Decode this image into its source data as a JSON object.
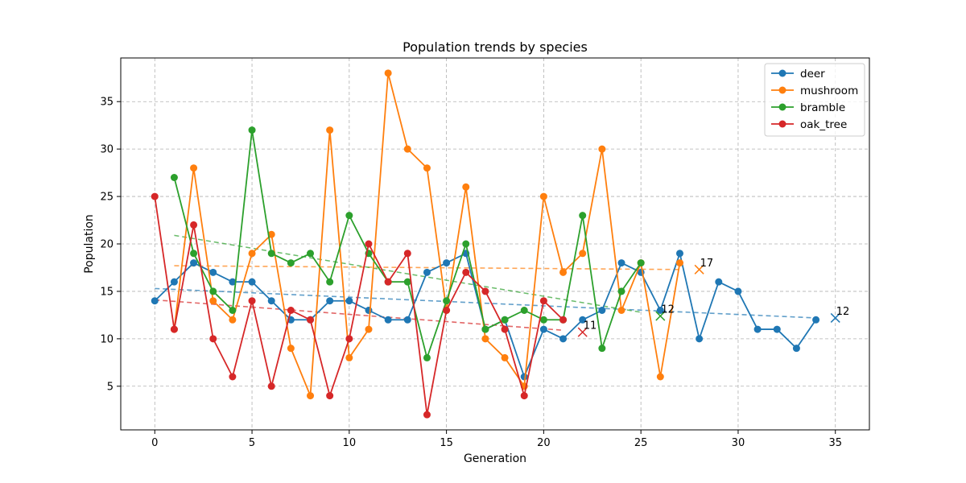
{
  "chart_data": {
    "type": "line",
    "title": "Population trends by species",
    "xlabel": "Generation",
    "ylabel": "Population",
    "xlim": [
      -1.75,
      36.75
    ],
    "ylim": [
      0.4,
      39.6
    ],
    "xticks": [
      0,
      5,
      10,
      15,
      20,
      25,
      30,
      35
    ],
    "yticks": [
      5,
      10,
      15,
      20,
      25,
      30,
      35
    ],
    "grid": true,
    "legend_position": "top-right",
    "series": [
      {
        "name": "deer",
        "color": "#1f77b4",
        "x": [
          0,
          1,
          2,
          3,
          4,
          5,
          6,
          7,
          8,
          9,
          10,
          11,
          12,
          13,
          14,
          15,
          16,
          17,
          18,
          19,
          20,
          21,
          22,
          23,
          24,
          25,
          26,
          27,
          28,
          29,
          30,
          31,
          32,
          33,
          34
        ],
        "y": [
          14,
          16,
          18,
          17,
          16,
          16,
          14,
          12,
          12,
          14,
          14,
          13,
          12,
          12,
          17,
          18,
          19,
          11,
          12,
          6,
          11,
          10,
          12,
          13,
          18,
          17,
          13,
          19,
          10,
          16,
          15,
          11,
          11,
          9,
          12
        ],
        "trend": {
          "x0": 0,
          "y0": 15.3,
          "x1": 34,
          "y1": 12.2
        },
        "forecast": {
          "x": 35,
          "y": 12.2,
          "label": "12"
        }
      },
      {
        "name": "mushroom",
        "color": "#ff7f0e",
        "x": [
          1,
          2,
          3,
          4,
          5,
          6,
          7,
          8,
          9,
          10,
          11,
          12,
          13,
          14,
          15,
          16,
          17,
          18,
          19,
          20,
          21,
          22,
          23,
          24,
          25,
          26,
          27
        ],
        "y": [
          11,
          28,
          14,
          12,
          19,
          21,
          9,
          4,
          32,
          8,
          11,
          38,
          30,
          28,
          13,
          26,
          10,
          8,
          5,
          25,
          17,
          19,
          30,
          13,
          18,
          6,
          18
        ],
        "trend": {
          "x0": 1,
          "y0": 17.7,
          "x1": 27,
          "y1": 17.3
        },
        "forecast": {
          "x": 28,
          "y": 17.3,
          "label": "17"
        }
      },
      {
        "name": "bramble",
        "color": "#2ca02c",
        "x": [
          1,
          2,
          3,
          4,
          5,
          6,
          7,
          8,
          9,
          10,
          11,
          12,
          13,
          14,
          15,
          16,
          17,
          18,
          19,
          20,
          21,
          22,
          23,
          24,
          25
        ],
        "y": [
          27,
          19,
          15,
          13,
          32,
          19,
          18,
          19,
          16,
          23,
          19,
          16,
          16,
          8,
          14,
          20,
          11,
          12,
          13,
          12,
          12,
          23,
          9,
          15,
          18
        ],
        "trend": {
          "x0": 1,
          "y0": 20.9,
          "x1": 25,
          "y1": 12.8
        },
        "forecast": {
          "x": 26,
          "y": 12.4,
          "label": "12"
        }
      },
      {
        "name": "oak_tree",
        "color": "#d62728",
        "x": [
          0,
          1,
          2,
          3,
          4,
          5,
          6,
          7,
          8,
          9,
          10,
          11,
          12,
          13,
          14,
          15,
          16,
          17,
          18,
          19,
          20,
          21
        ],
        "y": [
          25,
          11,
          22,
          10,
          6,
          14,
          5,
          13,
          12,
          4,
          10,
          20,
          16,
          19,
          2,
          13,
          17,
          15,
          11,
          4,
          14,
          12
        ],
        "trend": {
          "x0": 0,
          "y0": 14.1,
          "x1": 21,
          "y1": 10.9
        },
        "forecast": {
          "x": 22,
          "y": 10.7,
          "label": "11"
        }
      }
    ]
  }
}
